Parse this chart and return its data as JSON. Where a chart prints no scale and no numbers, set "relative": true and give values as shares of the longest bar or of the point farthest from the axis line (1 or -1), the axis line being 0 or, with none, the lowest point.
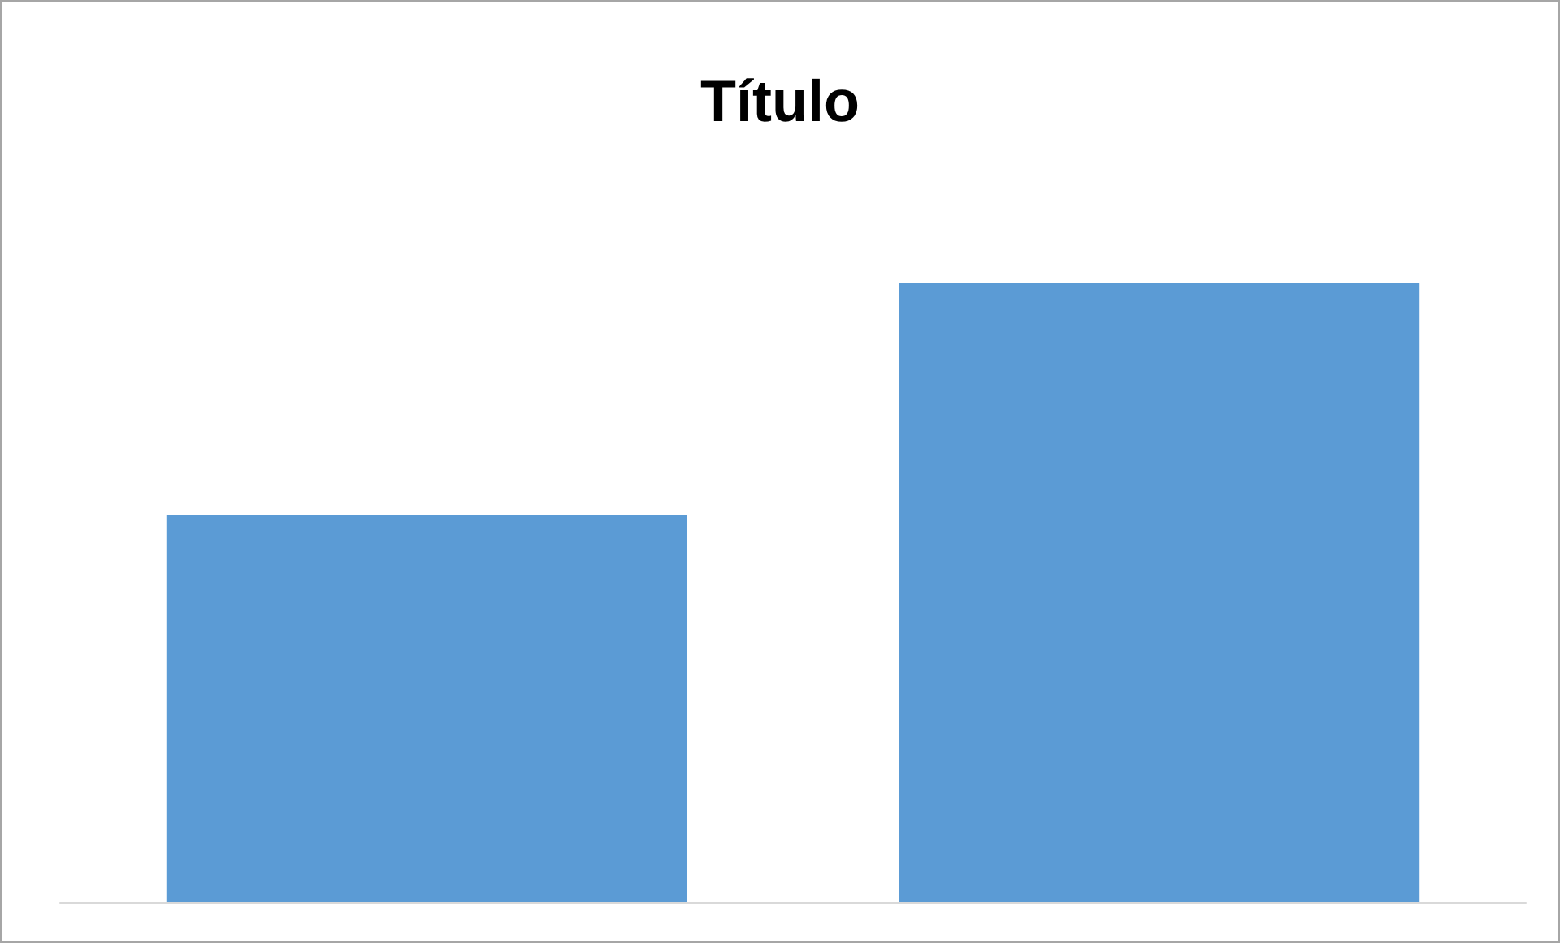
{
  "chart_data": {
    "type": "bar",
    "title": "Título",
    "relative": true,
    "categories": [
      null,
      null
    ],
    "series": [
      {
        "color": "#5b9bd5",
        "values": [
          0.625,
          1
        ]
      }
    ]
  }
}
